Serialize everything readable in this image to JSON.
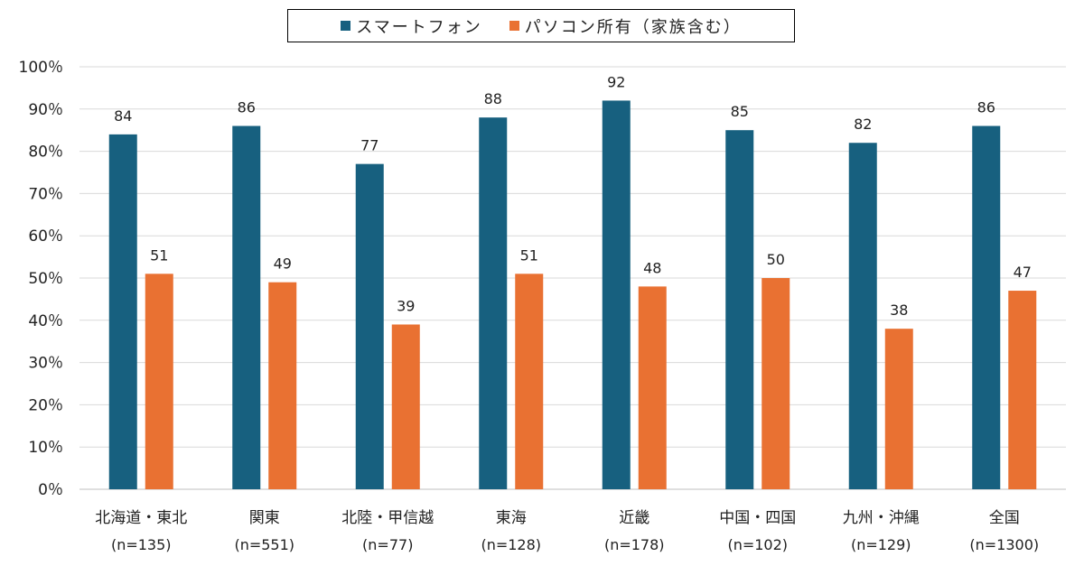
{
  "chart_data": {
    "type": "bar",
    "categories": [
      "北海道・東北",
      "関東",
      "北陸・甲信越",
      "東海",
      "近畿",
      "中国・四国",
      "九州・沖縄",
      "全国"
    ],
    "sample_sizes": [
      "(n=135)",
      "(n=551)",
      "(n=77)",
      "(n=128)",
      "(n=178)",
      "(n=102)",
      "(n=129)",
      "(n=1300)"
    ],
    "series": [
      {
        "name": "スマートフォン",
        "color": "#17607f",
        "values": [
          84,
          86,
          77,
          88,
          92,
          85,
          82,
          86
        ]
      },
      {
        "name": "パソコン所有（家族含む）",
        "color": "#e97132",
        "values": [
          51,
          49,
          39,
          51,
          48,
          50,
          38,
          47
        ]
      }
    ],
    "ylim": [
      0,
      100
    ],
    "yticks": [
      "0％",
      "10％",
      "20％",
      "30％",
      "40％",
      "50％",
      "60％",
      "70％",
      "80％",
      "90％",
      "100％"
    ],
    "grid": true,
    "legend_position": "top-center"
  }
}
